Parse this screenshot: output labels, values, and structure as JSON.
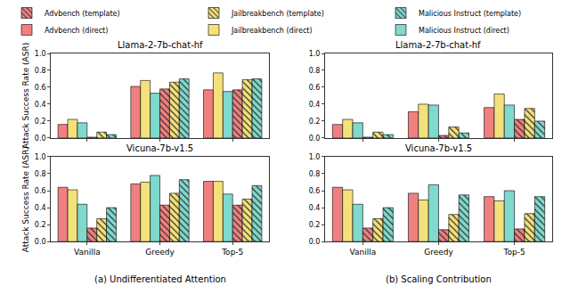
{
  "chart_data": [
    {
      "type": "bar",
      "title": "Llama-2-7b-chat-hf",
      "categories": [
        "Vanilla",
        "Greedy",
        "Top-5"
      ],
      "y_label": "Attack Success Rate (ASR)",
      "tick_labels": "y",
      "legend": "upper left",
      "grid": false,
      "ylim": [
        0,
        1
      ],
      "yticks": [
        {
          "value": 0,
          "label": "0.0"
        },
        {
          "value": 0.2,
          "label": "0.2"
        },
        {
          "value": 0.4,
          "label": "0.4"
        },
        {
          "value": 0.6,
          "label": "0.6"
        },
        {
          "value": 0.8,
          "label": "0.8"
        },
        {
          "value": 1,
          "label": "1.0"
        }
      ],
      "series": [
        {
          "name": "Advbench (template)",
          "color": "#f08080",
          "marker": "hatch",
          "values": [
            0.01,
            0.58,
            0.57
          ]
        },
        {
          "name": "Jailbreakbench (template)",
          "color": "#f5e17b",
          "marker": "hatch",
          "values": [
            0.07,
            0.66,
            0.69
          ]
        },
        {
          "name": "Malicious Instruct (template)",
          "color": "#7fd9cd",
          "marker": "hatch",
          "values": [
            0.04,
            0.7,
            0.7
          ]
        },
        {
          "name": "Advbench (direct)",
          "color": "#f08080",
          "marker": "solid",
          "values": [
            0.16,
            0.61,
            0.57
          ]
        },
        {
          "name": "Jailbreakbench (direct)",
          "color": "#f5e17b",
          "marker": "solid",
          "values": [
            0.22,
            0.68,
            0.77
          ]
        },
        {
          "name": "Malicious Instruct (direct)",
          "color": "#7fd9cd",
          "marker": "solid",
          "values": [
            0.18,
            0.53,
            0.55
          ]
        }
      ]
    },
    {
      "type": "bar",
      "title": "Vicuna-7b-v1.5",
      "categories": [
        "Vanilla",
        "Greedy",
        "Top-5"
      ],
      "y_label": "Attack Success Rate (ASR)",
      "x_label": "(a) Undifferentiated Attention",
      "grid": false,
      "ylim": [
        0,
        1
      ],
      "yticks": [
        {
          "value": 0,
          "label": "0.0"
        },
        {
          "value": 0.2,
          "label": "0.2"
        },
        {
          "value": 0.4,
          "label": "0.4"
        },
        {
          "value": 0.6,
          "label": "0.6"
        },
        {
          "value": 0.8,
          "label": "0.8"
        },
        {
          "value": 1,
          "label": "1.0"
        }
      ],
      "series": [
        {
          "name": "Advbench (template)",
          "color": "#f08080",
          "marker": "hatch",
          "values": [
            0.16,
            0.43,
            0.43
          ]
        },
        {
          "name": "Jailbreakbench (template)",
          "color": "#f5e17b",
          "marker": "hatch",
          "values": [
            0.27,
            0.57,
            0.5
          ]
        },
        {
          "name": "Malicious Instruct (template)",
          "color": "#7fd9cd",
          "marker": "hatch",
          "values": [
            0.4,
            0.73,
            0.66
          ]
        },
        {
          "name": "Advbench (direct)",
          "color": "#f08080",
          "marker": "solid",
          "values": [
            0.64,
            0.68,
            0.71
          ]
        },
        {
          "name": "Jailbreakbench (direct)",
          "color": "#f5e17b",
          "marker": "solid",
          "values": [
            0.61,
            0.7,
            0.71
          ]
        },
        {
          "name": "Malicious Instruct (direct)",
          "color": "#7fd9cd",
          "marker": "solid",
          "values": [
            0.44,
            0.78,
            0.56
          ]
        }
      ]
    },
    {
      "type": "bar",
      "title": "Llama-2-7b-chat-hf",
      "categories": [
        "Vanilla",
        "Greedy",
        "Top-5"
      ],
      "tick_labels": "y",
      "grid": false,
      "ylim": [
        0,
        1
      ],
      "yticks": [
        {
          "value": 0,
          "label": "0.0"
        },
        {
          "value": 0.2,
          "label": "0.2"
        },
        {
          "value": 0.4,
          "label": "0.4"
        },
        {
          "value": 0.6,
          "label": "0.6"
        },
        {
          "value": 0.8,
          "label": "0.8"
        },
        {
          "value": 1,
          "label": "1.0"
        }
      ],
      "series": [
        {
          "name": "Advbench (template)",
          "color": "#f08080",
          "marker": "hatch",
          "values": [
            0.01,
            0.03,
            0.22
          ]
        },
        {
          "name": "Jailbreakbench (template)",
          "color": "#f5e17b",
          "marker": "hatch",
          "values": [
            0.07,
            0.13,
            0.35
          ]
        },
        {
          "name": "Malicious Instruct (template)",
          "color": "#7fd9cd",
          "marker": "hatch",
          "values": [
            0.04,
            0.06,
            0.2
          ]
        },
        {
          "name": "Advbench (direct)",
          "color": "#f08080",
          "marker": "solid",
          "values": [
            0.16,
            0.31,
            0.36
          ]
        },
        {
          "name": "Jailbreakbench (direct)",
          "color": "#f5e17b",
          "marker": "solid",
          "values": [
            0.22,
            0.4,
            0.52
          ]
        },
        {
          "name": "Malicious Instruct (direct)",
          "color": "#7fd9cd",
          "marker": "solid",
          "values": [
            0.18,
            0.39,
            0.39
          ]
        }
      ]
    },
    {
      "type": "bar",
      "title": "Vicuna-7b-v1.5",
      "categories": [
        "Vanilla",
        "Greedy",
        "Top-5"
      ],
      "x_label": "(b) Scaling Contribution",
      "grid": false,
      "ylim": [
        0,
        1
      ],
      "yticks": [
        {
          "value": 0,
          "label": "0.0"
        },
        {
          "value": 0.2,
          "label": "0.2"
        },
        {
          "value": 0.4,
          "label": "0.4"
        },
        {
          "value": 0.6,
          "label": "0.6"
        },
        {
          "value": 0.8,
          "label": "0.8"
        },
        {
          "value": 1,
          "label": "1.0"
        }
      ],
      "series": [
        {
          "name": "Advbench (template)",
          "color": "#f08080",
          "marker": "hatch",
          "values": [
            0.16,
            0.14,
            0.15
          ]
        },
        {
          "name": "Jailbreakbench (template)",
          "color": "#f5e17b",
          "marker": "hatch",
          "values": [
            0.27,
            0.32,
            0.33
          ]
        },
        {
          "name": "Malicious Instruct (template)",
          "color": "#7fd9cd",
          "marker": "hatch",
          "values": [
            0.4,
            0.55,
            0.53
          ]
        },
        {
          "name": "Advbench (direct)",
          "color": "#f08080",
          "marker": "solid",
          "values": [
            0.64,
            0.57,
            0.53
          ]
        },
        {
          "name": "Jailbreakbench (direct)",
          "color": "#f5e17b",
          "marker": "solid",
          "values": [
            0.61,
            0.49,
            0.48
          ]
        },
        {
          "name": "Malicious Instruct (direct)",
          "color": "#7fd9cd",
          "marker": "solid",
          "values": [
            0.44,
            0.67,
            0.6
          ]
        }
      ]
    }
  ]
}
